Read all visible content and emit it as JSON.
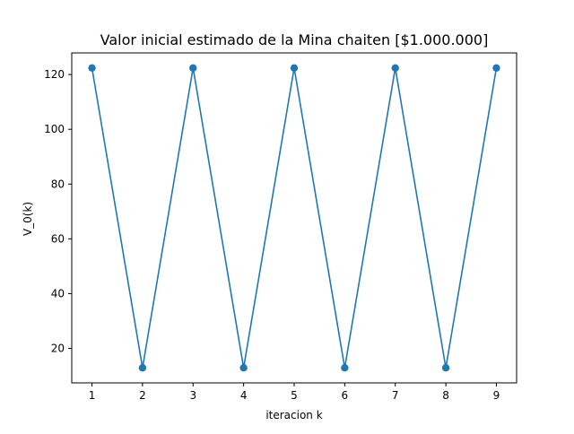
{
  "chart_data": {
    "type": "line",
    "title": "Valor inicial estimado de la Mina chaiten [$1.000.000]",
    "xlabel": "iteracion k",
    "ylabel": "V_0(k)",
    "x": [
      1,
      2,
      3,
      4,
      5,
      6,
      7,
      8,
      9
    ],
    "series": [
      {
        "values": [
          122.4,
          12.9,
          122.4,
          12.9,
          122.4,
          12.9,
          122.4,
          12.9,
          122.4
        ],
        "color": "#1f77b4",
        "marker": "circle"
      }
    ],
    "xlim": [
      0.6,
      9.4
    ],
    "ylim": [
      7.4,
      127.9
    ],
    "xticks": [
      1,
      2,
      3,
      4,
      5,
      6,
      7,
      8,
      9
    ],
    "yticks": [
      20,
      40,
      60,
      80,
      100,
      120
    ],
    "xtick_labels": [
      "1",
      "2",
      "3",
      "4",
      "5",
      "6",
      "7",
      "8",
      "9"
    ],
    "ytick_labels": [
      "20",
      "40",
      "60",
      "80",
      "100",
      "120"
    ],
    "grid": false,
    "legend": false
  }
}
